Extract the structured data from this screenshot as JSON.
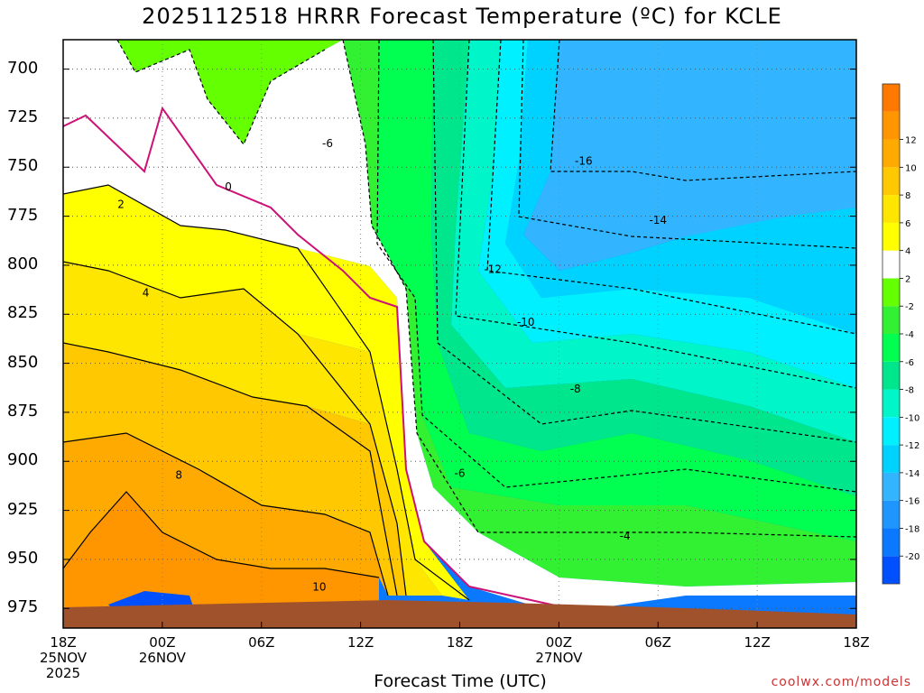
{
  "title": "2025112518 HRRR Forecast Temperature (ºC) for KCLE",
  "xlabel": "Forecast Time (UTC)",
  "credit": "coolwx.com/models",
  "ylabels": [
    "700",
    "725",
    "750",
    "775",
    "800",
    "825",
    "850",
    "875",
    "900",
    "925",
    "950",
    "975"
  ],
  "xlabels": [
    {
      "time": "18Z",
      "line2": "25NOV",
      "line3": "2025"
    },
    {
      "time": "00Z",
      "line2": "26NOV",
      "line3": ""
    },
    {
      "time": "06Z",
      "line2": "",
      "line3": ""
    },
    {
      "time": "12Z",
      "line2": "",
      "line3": ""
    },
    {
      "time": "18Z",
      "line2": "",
      "line3": ""
    },
    {
      "time": "00Z",
      "line2": "27NOV",
      "line3": ""
    },
    {
      "time": "06Z",
      "line2": "",
      "line3": ""
    },
    {
      "time": "12Z",
      "line2": "",
      "line3": ""
    },
    {
      "time": "18Z",
      "line2": "",
      "line3": ""
    }
  ],
  "colorbar": [
    {
      "label": "",
      "color": "#0050ff"
    },
    {
      "label": "-20",
      "color": "#0a78ff"
    },
    {
      "label": "-18",
      "color": "#1f96ff"
    },
    {
      "label": "-16",
      "color": "#32b4ff"
    },
    {
      "label": "-14",
      "color": "#00d2ff"
    },
    {
      "label": "-12",
      "color": "#00f0ff"
    },
    {
      "label": "-10",
      "color": "#00f5c8"
    },
    {
      "label": "-8",
      "color": "#00e68c"
    },
    {
      "label": "-6",
      "color": "#00ff50"
    },
    {
      "label": "-4",
      "color": "#32f032"
    },
    {
      "label": "-2",
      "color": "#64ff00"
    },
    {
      "label": "2",
      "color": "#ffffff"
    },
    {
      "label": "4",
      "color": "#ffff00"
    },
    {
      "label": "6",
      "color": "#ffe600"
    },
    {
      "label": "8",
      "color": "#ffc800"
    },
    {
      "label": "10",
      "color": "#ffaa00"
    },
    {
      "label": "12",
      "color": "#ff9600"
    },
    {
      "label": "",
      "color": "#ff7800"
    }
  ],
  "contour_labels": [
    {
      "text": "-6",
      "x": "16h",
      "y": 738
    },
    {
      "text": "-16",
      "x": "31.5h",
      "y": 747
    },
    {
      "text": "0",
      "x": "10h",
      "y": 760
    },
    {
      "text": "2",
      "x": "3.5h",
      "y": 769
    },
    {
      "text": "-14",
      "x": "36h",
      "y": 777
    },
    {
      "text": "-12",
      "x": "26h",
      "y": 802
    },
    {
      "text": "4",
      "x": "5h",
      "y": 814
    },
    {
      "text": "-10",
      "x": "28h",
      "y": 829
    },
    {
      "text": "-8",
      "x": "31h",
      "y": 863
    },
    {
      "text": "8",
      "x": "7h",
      "y": 907
    },
    {
      "text": "-6",
      "x": "24h",
      "y": 906
    },
    {
      "text": "-4",
      "x": "34h",
      "y": 938
    },
    {
      "text": "10",
      "x": "15.5h",
      "y": 964
    }
  ],
  "chart_data": {
    "type": "heatmap",
    "title": "2025112518 HRRR Forecast Temperature (ºC) for KCLE",
    "xlabel": "Forecast Time (UTC)",
    "ylabel": "",
    "x_ticks": [
      "18Z 25NOV 2025",
      "00Z 26NOV",
      "06Z",
      "12Z",
      "18Z",
      "00Z 27NOV",
      "06Z",
      "12Z",
      "18Z"
    ],
    "y_ticks": [
      700,
      725,
      750,
      775,
      800,
      825,
      850,
      875,
      900,
      925,
      950,
      975
    ],
    "y_range_hPa": [
      685,
      985
    ],
    "x_range_hours": [
      0,
      48
    ],
    "colorbar_levels": [
      -20,
      -18,
      -16,
      -14,
      -12,
      -10,
      -8,
      -6,
      -4,
      -2,
      2,
      4,
      6,
      8,
      10,
      12
    ],
    "contour_labels": [
      "-6",
      "-16",
      "0",
      "2",
      "-14",
      "-12",
      "4",
      "-10",
      "-8",
      "8",
      "-6",
      "-4",
      "10"
    ],
    "grid": true,
    "legend": "right colorbar"
  }
}
